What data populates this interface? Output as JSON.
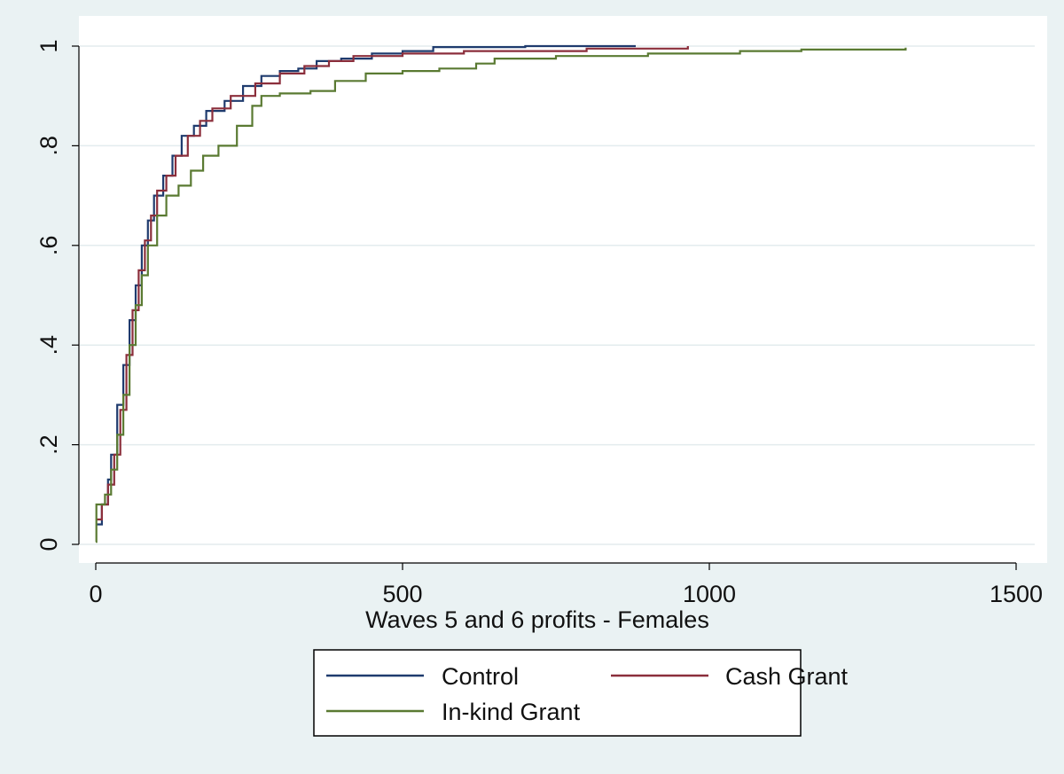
{
  "chart_data": {
    "type": "line",
    "title": "",
    "xlabel": "Waves 5 and 6 profits - Females",
    "ylabel": "",
    "xlim": [
      0,
      1500
    ],
    "ylim": [
      0,
      1
    ],
    "x_ticks": [
      0,
      500,
      1000,
      1500
    ],
    "x_tick_labels": [
      "0",
      "500",
      "1000",
      "1500"
    ],
    "y_ticks": [
      0,
      0.2,
      0.4,
      0.6,
      0.8,
      1
    ],
    "y_tick_labels": [
      "0",
      ".2",
      ".4",
      ".6",
      ".8",
      "1"
    ],
    "grid": true,
    "legend_position": "bottom",
    "colors": {
      "background": "#eaf2f3",
      "plot_area": "#ffffff",
      "grid": "#e3ecee",
      "axis": "#000000"
    },
    "series": [
      {
        "name": "Control",
        "legend_label": "Control",
        "color": "#1f3b6e",
        "step": true,
        "points": [
          [
            0,
            0.04
          ],
          [
            10,
            0.08
          ],
          [
            20,
            0.13
          ],
          [
            25,
            0.18
          ],
          [
            35,
            0.28
          ],
          [
            45,
            0.36
          ],
          [
            55,
            0.45
          ],
          [
            65,
            0.52
          ],
          [
            75,
            0.6
          ],
          [
            85,
            0.65
          ],
          [
            95,
            0.7
          ],
          [
            110,
            0.74
          ],
          [
            125,
            0.78
          ],
          [
            140,
            0.82
          ],
          [
            160,
            0.84
          ],
          [
            180,
            0.87
          ],
          [
            210,
            0.89
          ],
          [
            240,
            0.92
          ],
          [
            270,
            0.94
          ],
          [
            300,
            0.95
          ],
          [
            330,
            0.955
          ],
          [
            360,
            0.97
          ],
          [
            400,
            0.975
          ],
          [
            450,
            0.985
          ],
          [
            500,
            0.99
          ],
          [
            550,
            0.998
          ],
          [
            700,
            1.0
          ],
          [
            880,
            1.0
          ]
        ]
      },
      {
        "name": "Cash Grant",
        "legend_label": "Cash Grant",
        "color": "#8b2e3b",
        "step": true,
        "points": [
          [
            0,
            0.05
          ],
          [
            10,
            0.08
          ],
          [
            20,
            0.12
          ],
          [
            30,
            0.18
          ],
          [
            40,
            0.27
          ],
          [
            50,
            0.38
          ],
          [
            60,
            0.47
          ],
          [
            70,
            0.55
          ],
          [
            80,
            0.61
          ],
          [
            90,
            0.66
          ],
          [
            100,
            0.71
          ],
          [
            115,
            0.74
          ],
          [
            130,
            0.78
          ],
          [
            150,
            0.82
          ],
          [
            170,
            0.85
          ],
          [
            190,
            0.875
          ],
          [
            220,
            0.9
          ],
          [
            260,
            0.925
          ],
          [
            300,
            0.945
          ],
          [
            340,
            0.96
          ],
          [
            380,
            0.97
          ],
          [
            420,
            0.98
          ],
          [
            500,
            0.985
          ],
          [
            600,
            0.99
          ],
          [
            800,
            0.995
          ],
          [
            965,
            1.0
          ]
        ]
      },
      {
        "name": "In-kind Grant",
        "legend_label": "In-kind Grant",
        "color": "#5a7a32",
        "step": true,
        "points": [
          [
            0,
            0.005
          ],
          [
            1,
            0.08
          ],
          [
            15,
            0.1
          ],
          [
            25,
            0.15
          ],
          [
            35,
            0.22
          ],
          [
            45,
            0.3
          ],
          [
            55,
            0.4
          ],
          [
            65,
            0.48
          ],
          [
            75,
            0.54
          ],
          [
            85,
            0.6
          ],
          [
            100,
            0.66
          ],
          [
            115,
            0.7
          ],
          [
            135,
            0.72
          ],
          [
            155,
            0.75
          ],
          [
            175,
            0.78
          ],
          [
            200,
            0.8
          ],
          [
            230,
            0.84
          ],
          [
            255,
            0.88
          ],
          [
            270,
            0.9
          ],
          [
            300,
            0.905
          ],
          [
            350,
            0.91
          ],
          [
            390,
            0.93
          ],
          [
            440,
            0.945
          ],
          [
            500,
            0.95
          ],
          [
            560,
            0.955
          ],
          [
            620,
            0.965
          ],
          [
            650,
            0.975
          ],
          [
            750,
            0.98
          ],
          [
            900,
            0.985
          ],
          [
            1050,
            0.99
          ],
          [
            1150,
            0.993
          ],
          [
            1320,
            0.997
          ]
        ]
      }
    ]
  }
}
